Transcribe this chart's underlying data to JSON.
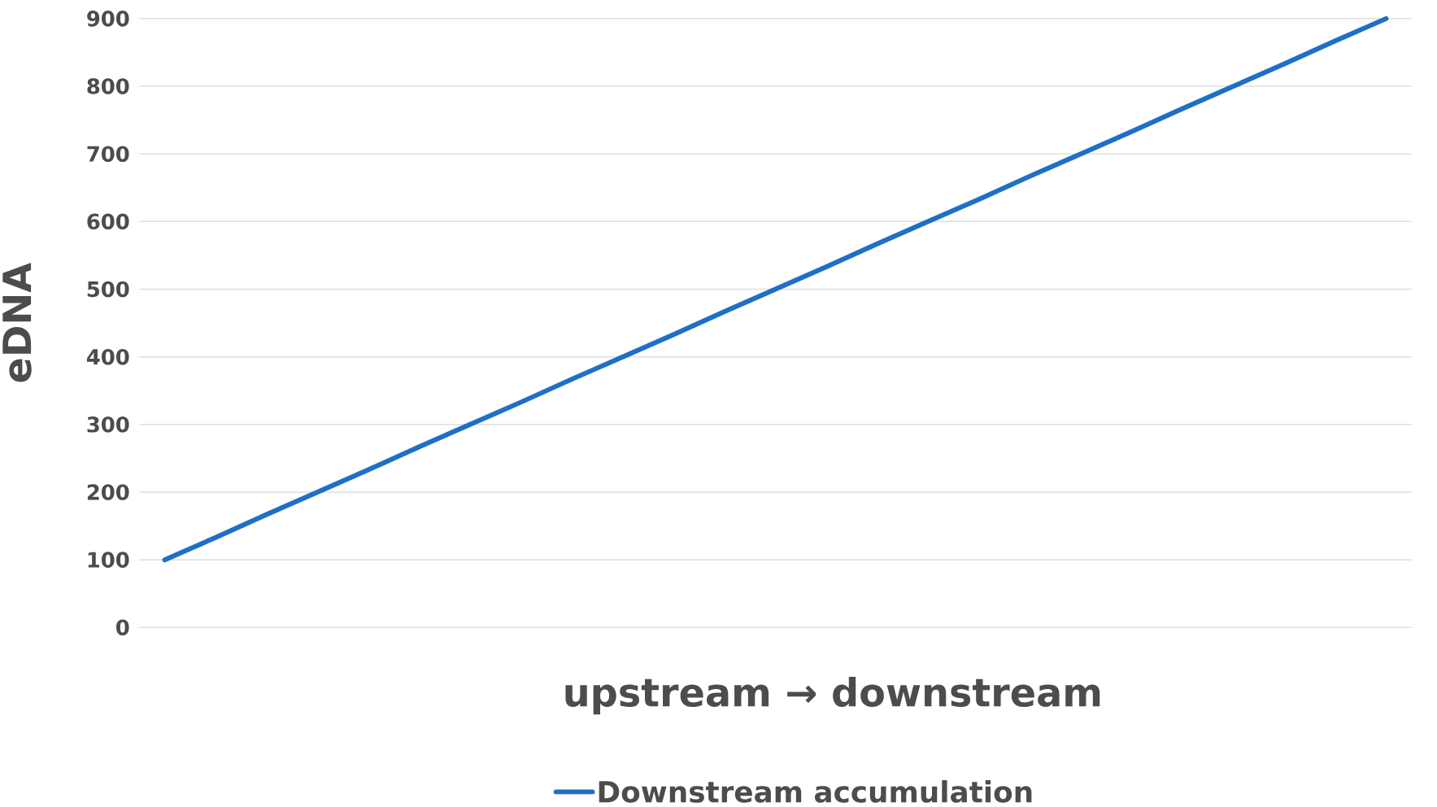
{
  "chart_data": {
    "type": "line",
    "xlabel": "upstream → downstream",
    "ylabel": "eDNA",
    "categories": [
      null,
      null,
      null,
      null,
      null,
      null,
      null,
      null,
      null,
      null,
      null,
      null,
      null,
      null,
      null,
      null,
      null,
      null,
      null,
      null,
      null,
      null,
      null,
      null,
      null
    ],
    "series": [
      {
        "name": "Downstream accumulation",
        "color": "#1f6fc6",
        "values": [
          100,
          133,
          167,
          200,
          233,
          267,
          300,
          333,
          367,
          400,
          433,
          467,
          500,
          533,
          567,
          600,
          633,
          667,
          700,
          733,
          767,
          800,
          833,
          867,
          900
        ]
      }
    ],
    "ylim": [
      0,
      900
    ],
    "yticks": [
      0,
      100,
      200,
      300,
      400,
      500,
      600,
      700,
      800,
      900
    ],
    "grid": "y",
    "legend": "bottom",
    "marker": "none",
    "line_style": "solid"
  }
}
